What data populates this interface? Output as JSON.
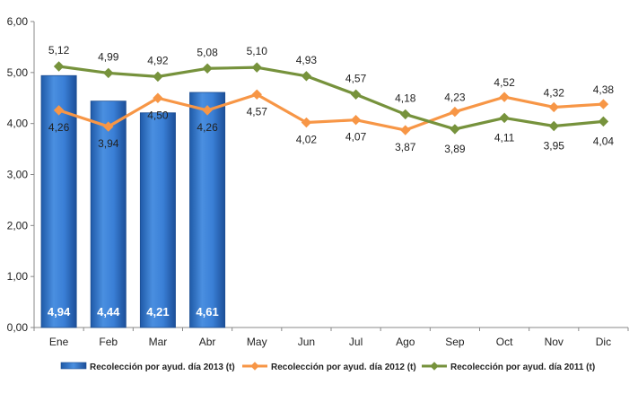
{
  "chart_data": {
    "type": "bar+line",
    "categories": [
      "Ene",
      "Feb",
      "Mar",
      "Abr",
      "May",
      "Jun",
      "Jul",
      "Ago",
      "Sep",
      "Oct",
      "Nov",
      "Dic"
    ],
    "ylim": [
      0,
      6
    ],
    "yticks": [
      "0,00",
      "1,00",
      "2,00",
      "3,00",
      "4,00",
      "5,00",
      "6,00"
    ],
    "grid": false,
    "legend_position": "bottom",
    "series": [
      {
        "name": "Recolección por ayud. día 2013 (t)",
        "kind": "bar",
        "color": "#2f73c8",
        "values": [
          4.94,
          4.44,
          4.21,
          4.61,
          null,
          null,
          null,
          null,
          null,
          null,
          null,
          null
        ],
        "labels": [
          "4,94",
          "4,44",
          "4,21",
          "4,61",
          "",
          "",
          "",
          "",
          "",
          "",
          "",
          ""
        ]
      },
      {
        "name": "Recolección por ayud. día 2012 (t)",
        "kind": "line",
        "color": "#f79646",
        "marker_color": "#f79646",
        "values": [
          4.26,
          3.94,
          4.5,
          4.26,
          4.57,
          4.02,
          4.07,
          3.87,
          4.23,
          4.52,
          4.32,
          4.38
        ],
        "labels": [
          "4,26",
          "3,94",
          "4,50",
          "4,26",
          "4,57",
          "4,02",
          "4,07",
          "3,87",
          "4,23",
          "4,52",
          "4,32",
          "4,38"
        ]
      },
      {
        "name": "Recolección por ayud. día 2011 (t)",
        "kind": "line",
        "color": "#76923c",
        "marker_color": "#77933c",
        "values": [
          5.12,
          4.99,
          4.92,
          5.08,
          5.1,
          4.93,
          4.57,
          4.18,
          3.89,
          4.11,
          3.95,
          4.04
        ],
        "labels": [
          "5,12",
          "4,99",
          "4,92",
          "5,08",
          "5,10",
          "4,93",
          "4,57",
          "4,18",
          "3,89",
          "4,11",
          "3,95",
          "4,04"
        ]
      }
    ]
  }
}
